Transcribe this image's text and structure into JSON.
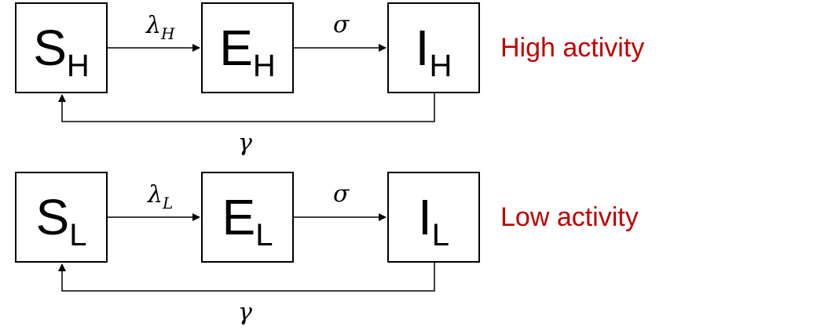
{
  "accent_color": "#c00000",
  "rows": [
    {
      "compartments": [
        {
          "letter": "S",
          "sub": "H"
        },
        {
          "letter": "E",
          "sub": "H"
        },
        {
          "letter": "I",
          "sub": "H"
        }
      ],
      "infection_rate": {
        "symbol": "λ",
        "sub": "H"
      },
      "progression_rate": "σ",
      "recovery_rate": "γ",
      "label": "High activity"
    },
    {
      "compartments": [
        {
          "letter": "S",
          "sub": "L"
        },
        {
          "letter": "E",
          "sub": "L"
        },
        {
          "letter": "I",
          "sub": "L"
        }
      ],
      "infection_rate": {
        "symbol": "λ",
        "sub": "L"
      },
      "progression_rate": "σ",
      "recovery_rate": "γ",
      "label": "Low activity"
    }
  ]
}
